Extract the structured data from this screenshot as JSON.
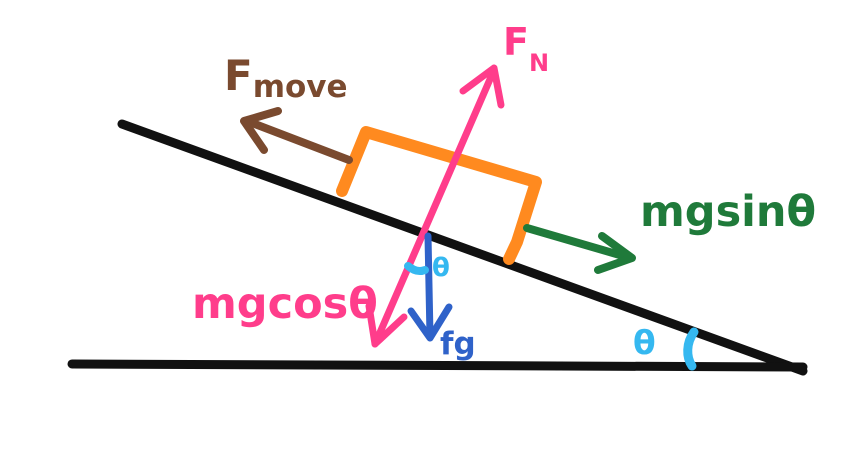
{
  "labels": {
    "f_move": "F",
    "f_move_sub": "move",
    "f_normal": "F",
    "f_normal_sub": "N",
    "mg_sin": "mgsinθ",
    "mg_cos": "mgcosθ",
    "f_g": "fg",
    "theta_base": "θ",
    "theta_block": "θ"
  },
  "colors": {
    "incline": "#111111",
    "block": "#ff8a1f",
    "f_move": "#7a4a2f",
    "f_normal": "#ff3d8b",
    "mg_sin": "#1f7a3a",
    "mg_cos": "#ff3d8b",
    "f_g": "#2f62c9",
    "theta": "#35b8f0"
  }
}
